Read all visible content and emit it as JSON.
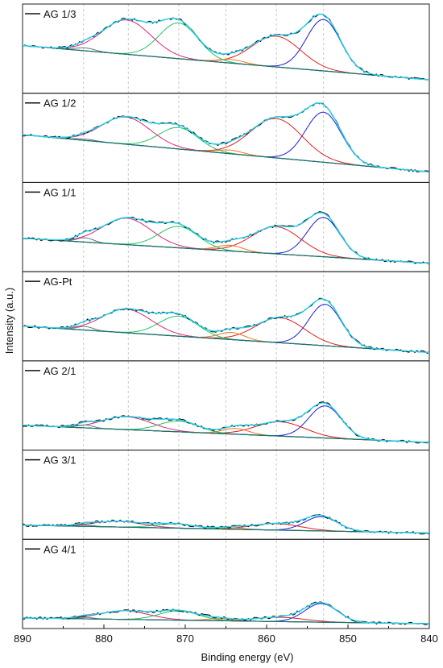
{
  "chart_data": {
    "type": "line",
    "xlabel": "Binding energy (eV)",
    "ylabel": "Intensity (a.u.)",
    "xlim": [
      890,
      840
    ],
    "x_ticks": [
      "890",
      "880",
      "870",
      "860",
      "850",
      "840"
    ],
    "reference_lines_ev": [
      882.5,
      877,
      870.8,
      865,
      858.8,
      853
    ],
    "colors": {
      "raw": "#000000",
      "envelope": "#22d3ee",
      "background": "#0f766e",
      "peak_853": "#1d1dd6",
      "peak_858": "#e11d1d",
      "peak_864": "#f97316",
      "peak_870": "#22c55e",
      "peak_877": "#db2777",
      "peak_882": "#6b7280"
    },
    "panels": [
      {
        "label": "AG 1/3",
        "bg_left": 0.6,
        "bg_right": 0.12,
        "peaks": [
          {
            "c": 853,
            "h": 0.72,
            "w": 2.1,
            "color": "peak_853"
          },
          {
            "c": 858.8,
            "h": 0.43,
            "w": 3.0,
            "color": "peak_858"
          },
          {
            "c": 864.3,
            "h": 0.05,
            "w": 1.6,
            "color": "peak_864"
          },
          {
            "c": 870.8,
            "h": 0.5,
            "w": 2.4,
            "color": "peak_870"
          },
          {
            "c": 877.2,
            "h": 0.48,
            "w": 3.0,
            "color": "peak_877"
          },
          {
            "c": 882.3,
            "h": 0.04,
            "w": 1.2,
            "color": "peak_882"
          }
        ]
      },
      {
        "label": "AG 1/2",
        "bg_left": 0.6,
        "bg_right": 0.08,
        "peaks": [
          {
            "c": 853,
            "h": 0.7,
            "w": 2.2,
            "color": "peak_853"
          },
          {
            "c": 858.8,
            "h": 0.55,
            "w": 3.2,
            "color": "peak_858"
          },
          {
            "c": 864.5,
            "h": 0.05,
            "w": 1.6,
            "color": "peak_864"
          },
          {
            "c": 870.8,
            "h": 0.3,
            "w": 2.4,
            "color": "peak_870"
          },
          {
            "c": 877.3,
            "h": 0.38,
            "w": 3.0,
            "color": "peak_877"
          },
          {
            "c": 882.3,
            "h": 0.02,
            "w": 1.2,
            "color": "peak_882"
          }
        ]
      },
      {
        "label": "AG 1/1",
        "bg_left": 0.4,
        "bg_right": 0.05,
        "peaks": [
          {
            "c": 853,
            "h": 0.55,
            "w": 2.0,
            "color": "peak_853"
          },
          {
            "c": 858.8,
            "h": 0.38,
            "w": 3.0,
            "color": "peak_858"
          },
          {
            "c": 864.5,
            "h": 0.08,
            "w": 1.6,
            "color": "peak_864"
          },
          {
            "c": 870.8,
            "h": 0.3,
            "w": 2.4,
            "color": "peak_870"
          },
          {
            "c": 877.2,
            "h": 0.37,
            "w": 3.0,
            "color": "peak_877"
          },
          {
            "c": 882.3,
            "h": 0.06,
            "w": 1.0,
            "color": "peak_882"
          }
        ]
      },
      {
        "label": "AG-Pt",
        "bg_left": 0.42,
        "bg_right": 0.05,
        "peaks": [
          {
            "c": 852.8,
            "h": 0.58,
            "w": 2.0,
            "color": "peak_853"
          },
          {
            "c": 858.3,
            "h": 0.35,
            "w": 3.0,
            "color": "peak_858"
          },
          {
            "c": 864.3,
            "h": 0.1,
            "w": 1.6,
            "color": "peak_864"
          },
          {
            "c": 870.8,
            "h": 0.28,
            "w": 2.4,
            "color": "peak_870"
          },
          {
            "c": 877.2,
            "h": 0.33,
            "w": 3.0,
            "color": "peak_877"
          },
          {
            "c": 882.3,
            "h": 0.05,
            "w": 1.0,
            "color": "peak_882"
          }
        ]
      },
      {
        "label": "AG 2/1",
        "bg_left": 0.28,
        "bg_right": 0.04,
        "peaks": [
          {
            "c": 852.8,
            "h": 0.45,
            "w": 2.0,
            "color": "peak_853"
          },
          {
            "c": 858.3,
            "h": 0.2,
            "w": 3.0,
            "color": "peak_858"
          },
          {
            "c": 863.8,
            "h": 0.08,
            "w": 1.6,
            "color": "peak_864"
          },
          {
            "c": 870.8,
            "h": 0.15,
            "w": 2.4,
            "color": "peak_870"
          },
          {
            "c": 877.2,
            "h": 0.18,
            "w": 3.0,
            "color": "peak_877"
          },
          {
            "c": 882.3,
            "h": 0.04,
            "w": 1.0,
            "color": "peak_882"
          }
        ]
      },
      {
        "label": "AG 3/1",
        "bg_left": 0.13,
        "bg_right": 0.02,
        "peaks": [
          {
            "c": 853.3,
            "h": 0.2,
            "w": 2.0,
            "color": "peak_853"
          },
          {
            "c": 858.8,
            "h": 0.09,
            "w": 3.0,
            "color": "peak_858"
          },
          {
            "c": 864.3,
            "h": 0.02,
            "w": 1.6,
            "color": "peak_864"
          },
          {
            "c": 871.3,
            "h": 0.06,
            "w": 2.4,
            "color": "peak_870"
          },
          {
            "c": 878.3,
            "h": 0.08,
            "w": 3.0,
            "color": "peak_877"
          },
          {
            "c": 882.3,
            "h": 0.02,
            "w": 1.0,
            "color": "peak_882"
          }
        ]
      },
      {
        "label": "AG 4/1",
        "bg_left": 0.08,
        "bg_right": 0.0,
        "peaks": [
          {
            "c": 853.3,
            "h": 0.26,
            "w": 2.0,
            "color": "peak_853"
          },
          {
            "c": 858.3,
            "h": 0.06,
            "w": 3.0,
            "color": "peak_858"
          },
          {
            "c": 865.8,
            "h": 0.03,
            "w": 1.6,
            "color": "peak_864"
          },
          {
            "c": 870.8,
            "h": 0.13,
            "w": 2.4,
            "color": "peak_870"
          },
          {
            "c": 877.5,
            "h": 0.12,
            "w": 3.0,
            "color": "peak_877"
          },
          {
            "c": 882.3,
            "h": 0.02,
            "w": 1.0,
            "color": "peak_882"
          }
        ]
      }
    ]
  }
}
